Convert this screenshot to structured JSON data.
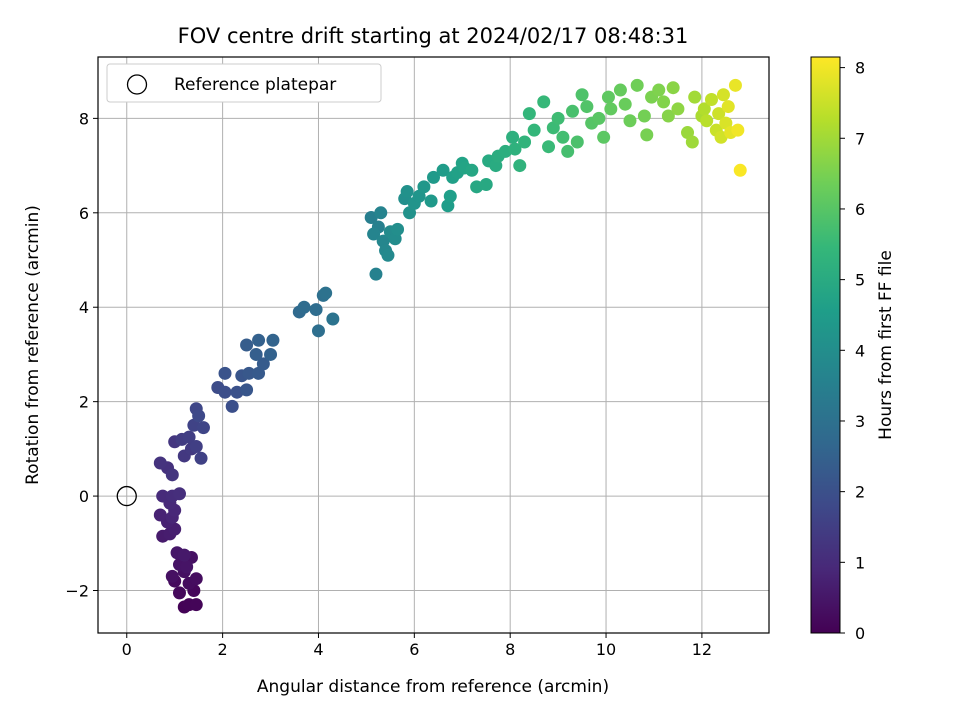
{
  "chart_data": {
    "type": "scatter",
    "title": "FOV centre drift starting at 2024/02/17 08:48:31",
    "xlabel": "Angular distance from reference (arcmin)",
    "ylabel": "Rotation from reference (arcmin)",
    "xlim": [
      -0.6,
      13.4
    ],
    "ylim": [
      -2.9,
      9.3
    ],
    "xticks": [
      0,
      2,
      4,
      6,
      8,
      10,
      12
    ],
    "yticks": [
      -2,
      0,
      2,
      4,
      6,
      8
    ],
    "grid": true,
    "legend": {
      "placement": "top-left",
      "entries": [
        "Reference platepar"
      ]
    },
    "reference_point": {
      "x": 0,
      "y": 0
    },
    "colorbar": {
      "label": "Hours from first FF file",
      "min": 0,
      "max": 8.15,
      "ticks": [
        0,
        1,
        2,
        3,
        4,
        5,
        6,
        7,
        8
      ],
      "colormap": "viridis",
      "colors": [
        "#440154",
        "#482878",
        "#3e4989",
        "#31688e",
        "#26828e",
        "#1f9e89",
        "#35b779",
        "#6ece58",
        "#b5de2b",
        "#fde725"
      ]
    },
    "points": [
      [
        1.2,
        -2.35,
        0.05
      ],
      [
        1.3,
        -2.3,
        0.08
      ],
      [
        1.45,
        -2.3,
        0.1
      ],
      [
        1.4,
        -2.0,
        0.15
      ],
      [
        1.1,
        -2.05,
        0.18
      ],
      [
        1.0,
        -1.8,
        0.22
      ],
      [
        1.3,
        -1.85,
        0.25
      ],
      [
        1.45,
        -1.75,
        0.28
      ],
      [
        1.2,
        -1.6,
        0.32
      ],
      [
        0.95,
        -1.7,
        0.35
      ],
      [
        1.35,
        -1.3,
        0.38
      ],
      [
        1.1,
        -1.45,
        0.42
      ],
      [
        1.25,
        -1.5,
        0.45
      ],
      [
        1.05,
        -1.2,
        0.5
      ],
      [
        1.2,
        -1.25,
        0.55
      ],
      [
        0.75,
        -0.85,
        0.6
      ],
      [
        0.9,
        -0.8,
        0.65
      ],
      [
        1.0,
        -0.7,
        0.7
      ],
      [
        0.85,
        -0.55,
        0.75
      ],
      [
        0.7,
        -0.4,
        0.8
      ],
      [
        0.95,
        -0.45,
        0.85
      ],
      [
        1.0,
        -0.3,
        0.9
      ],
      [
        0.9,
        -0.15,
        0.95
      ],
      [
        0.75,
        0.0,
        1.0
      ],
      [
        0.95,
        0.0,
        1.05
      ],
      [
        1.1,
        0.05,
        1.1
      ],
      [
        0.85,
        0.6,
        1.15
      ],
      [
        0.7,
        0.7,
        1.2
      ],
      [
        0.95,
        0.45,
        1.25
      ],
      [
        1.0,
        1.15,
        1.3
      ],
      [
        1.2,
        0.85,
        1.35
      ],
      [
        1.35,
        1.0,
        1.4
      ],
      [
        1.15,
        1.2,
        1.45
      ],
      [
        1.3,
        1.25,
        1.5
      ],
      [
        1.45,
        1.05,
        1.55
      ],
      [
        1.55,
        0.8,
        1.6
      ],
      [
        1.4,
        1.5,
        1.65
      ],
      [
        1.6,
        1.45,
        1.7
      ],
      [
        1.45,
        1.85,
        1.75
      ],
      [
        1.5,
        1.7,
        1.8
      ],
      [
        1.9,
        2.3,
        1.9
      ],
      [
        2.05,
        2.2,
        1.95
      ],
      [
        2.2,
        1.9,
        2.0
      ],
      [
        2.3,
        2.2,
        2.05
      ],
      [
        2.05,
        2.6,
        2.1
      ],
      [
        2.4,
        2.55,
        2.15
      ],
      [
        2.5,
        2.25,
        2.2
      ],
      [
        2.55,
        2.6,
        2.25
      ],
      [
        2.75,
        2.6,
        2.3
      ],
      [
        2.85,
        2.8,
        2.35
      ],
      [
        2.5,
        3.2,
        2.4
      ],
      [
        2.7,
        3.0,
        2.45
      ],
      [
        2.75,
        3.3,
        2.5
      ],
      [
        3.0,
        3.0,
        2.55
      ],
      [
        3.05,
        3.3,
        2.6
      ],
      [
        3.6,
        3.9,
        2.8
      ],
      [
        3.7,
        4.0,
        2.85
      ],
      [
        3.95,
        3.95,
        2.9
      ],
      [
        4.0,
        3.5,
        2.95
      ],
      [
        4.1,
        4.25,
        3.0
      ],
      [
        4.15,
        4.3,
        3.05
      ],
      [
        4.3,
        3.75,
        3.1
      ],
      [
        5.1,
        5.9,
        3.5
      ],
      [
        5.25,
        5.7,
        3.55
      ],
      [
        5.2,
        4.7,
        3.6
      ],
      [
        5.3,
        6.0,
        3.65
      ],
      [
        5.15,
        5.55,
        3.7
      ],
      [
        5.35,
        5.4,
        3.75
      ],
      [
        5.4,
        5.2,
        3.8
      ],
      [
        5.45,
        5.1,
        3.85
      ],
      [
        5.5,
        5.6,
        3.9
      ],
      [
        5.6,
        5.45,
        3.95
      ],
      [
        5.65,
        5.65,
        4.0
      ],
      [
        5.8,
        6.3,
        4.05
      ],
      [
        5.85,
        6.45,
        4.1
      ],
      [
        5.9,
        6.0,
        4.15
      ],
      [
        6.0,
        6.2,
        4.2
      ],
      [
        6.1,
        6.35,
        4.25
      ],
      [
        6.2,
        6.55,
        4.3
      ],
      [
        6.35,
        6.25,
        4.35
      ],
      [
        6.4,
        6.75,
        4.4
      ],
      [
        6.6,
        6.9,
        4.45
      ],
      [
        6.7,
        6.15,
        4.5
      ],
      [
        6.75,
        6.35,
        4.55
      ],
      [
        6.8,
        6.75,
        4.6
      ],
      [
        6.9,
        6.85,
        4.65
      ],
      [
        7.0,
        7.05,
        4.7
      ],
      [
        7.05,
        6.95,
        4.75
      ],
      [
        7.2,
        6.9,
        4.8
      ],
      [
        7.3,
        6.55,
        4.85
      ],
      [
        7.5,
        6.6,
        4.9
      ],
      [
        7.55,
        7.1,
        4.95
      ],
      [
        7.7,
        7.0,
        5.0
      ],
      [
        7.75,
        7.2,
        5.05
      ],
      [
        7.9,
        7.3,
        5.1
      ],
      [
        8.05,
        7.6,
        5.15
      ],
      [
        8.1,
        7.35,
        5.2
      ],
      [
        8.2,
        7.0,
        5.25
      ],
      [
        8.3,
        7.5,
        5.3
      ],
      [
        8.4,
        8.1,
        5.35
      ],
      [
        8.5,
        7.75,
        5.4
      ],
      [
        8.7,
        8.35,
        5.45
      ],
      [
        8.8,
        7.4,
        5.5
      ],
      [
        8.9,
        7.8,
        5.55
      ],
      [
        9.0,
        8.0,
        5.6
      ],
      [
        9.1,
        7.6,
        5.65
      ],
      [
        9.2,
        7.3,
        5.7
      ],
      [
        9.3,
        8.15,
        5.75
      ],
      [
        9.4,
        7.5,
        5.8
      ],
      [
        9.5,
        8.5,
        5.85
      ],
      [
        9.6,
        8.25,
        5.9
      ],
      [
        9.7,
        7.9,
        5.95
      ],
      [
        9.85,
        8.0,
        6.0
      ],
      [
        9.95,
        7.6,
        6.05
      ],
      [
        10.05,
        8.45,
        6.1
      ],
      [
        10.1,
        8.2,
        6.15
      ],
      [
        10.3,
        8.6,
        6.2
      ],
      [
        10.4,
        8.3,
        6.25
      ],
      [
        10.5,
        7.95,
        6.3
      ],
      [
        10.65,
        8.7,
        6.35
      ],
      [
        10.8,
        8.05,
        6.4
      ],
      [
        10.85,
        7.65,
        6.45
      ],
      [
        10.95,
        8.45,
        6.5
      ],
      [
        11.1,
        8.6,
        6.55
      ],
      [
        11.2,
        8.35,
        6.6
      ],
      [
        11.3,
        8.05,
        6.65
      ],
      [
        11.4,
        8.65,
        6.7
      ],
      [
        11.5,
        8.2,
        6.75
      ],
      [
        11.7,
        7.7,
        6.9
      ],
      [
        11.8,
        7.5,
        6.95
      ],
      [
        11.85,
        8.45,
        7.0
      ],
      [
        12.0,
        8.05,
        7.1
      ],
      [
        12.05,
        8.2,
        7.2
      ],
      [
        12.1,
        7.95,
        7.3
      ],
      [
        12.2,
        8.4,
        7.4
      ],
      [
        12.3,
        7.75,
        7.5
      ],
      [
        12.35,
        8.1,
        7.55
      ],
      [
        12.4,
        7.6,
        7.6
      ],
      [
        12.45,
        8.5,
        7.65
      ],
      [
        12.5,
        7.9,
        7.7
      ],
      [
        12.55,
        8.25,
        7.8
      ],
      [
        12.6,
        7.7,
        7.85
      ],
      [
        12.7,
        8.7,
        7.9
      ],
      [
        12.75,
        7.75,
        8.0
      ],
      [
        12.8,
        6.9,
        8.1
      ]
    ]
  }
}
